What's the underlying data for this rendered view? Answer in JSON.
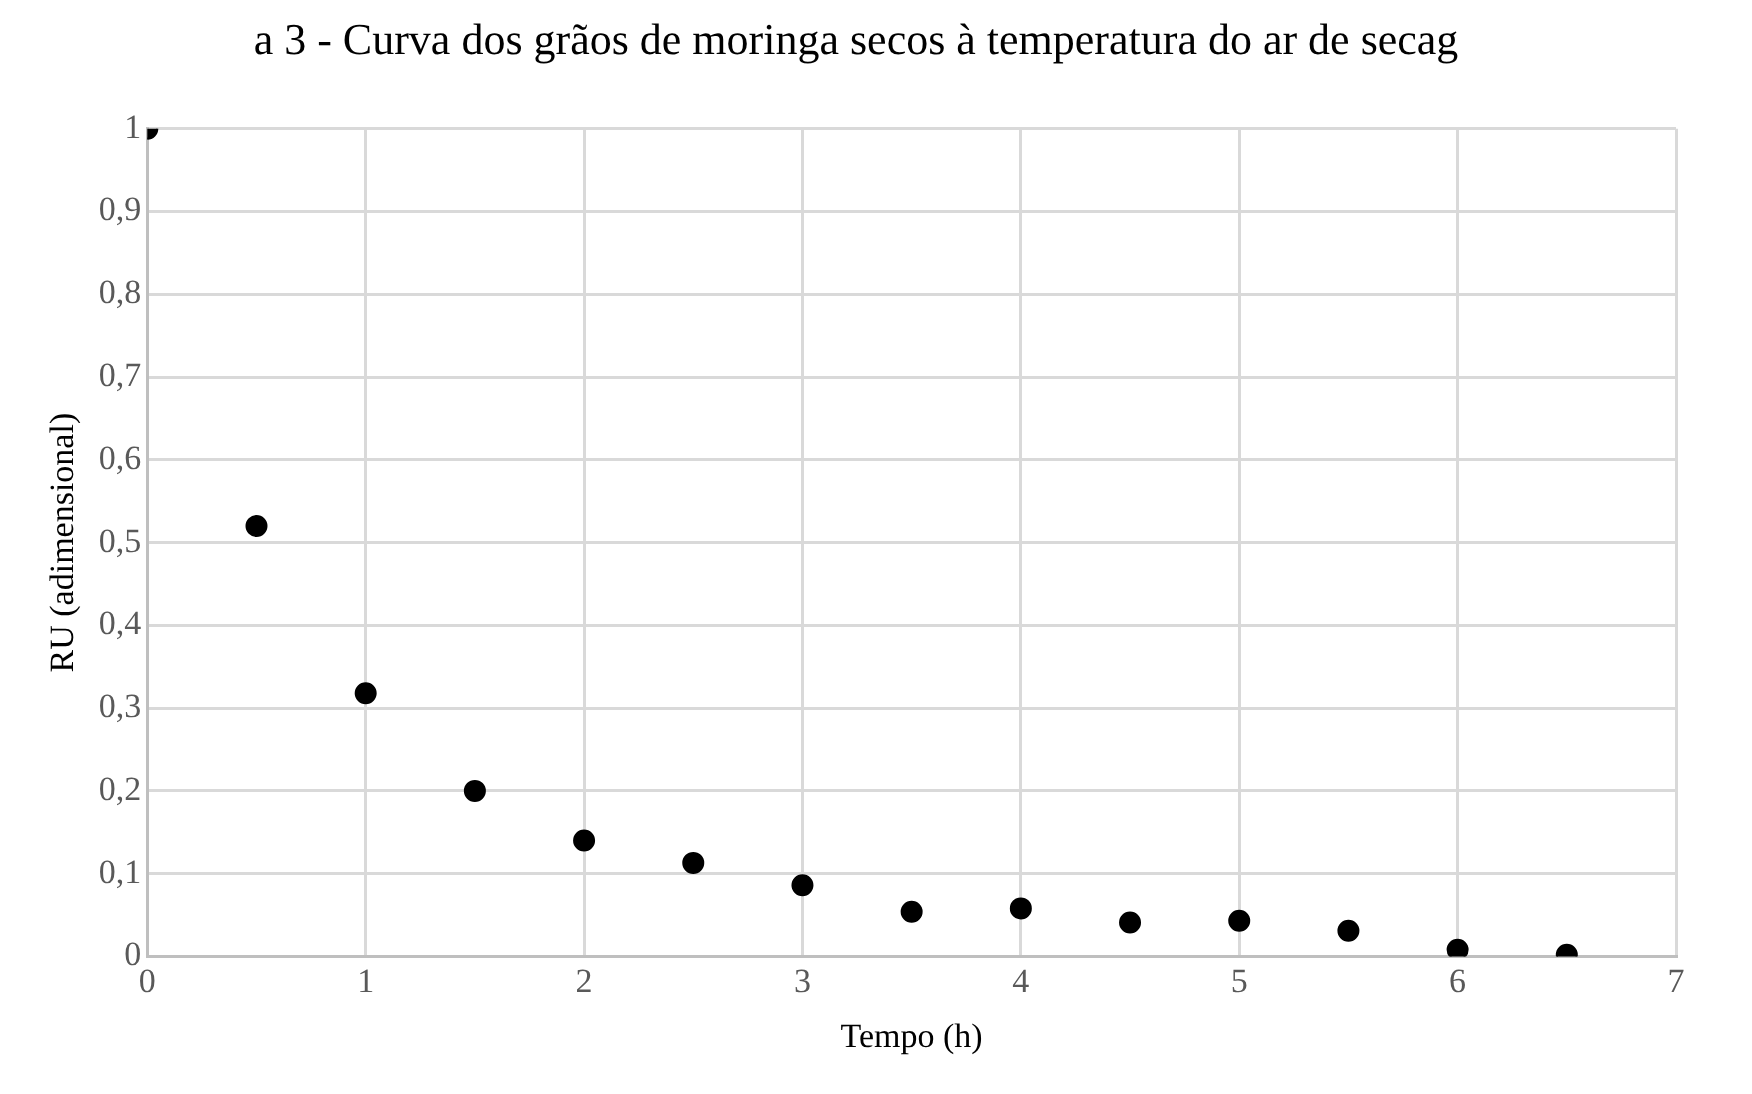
{
  "chart_data": {
    "type": "scatter",
    "title": "a 3 - Curva dos grãos de moringa secos à temperatura do ar de secag",
    "xlabel": "Tempo (h)",
    "ylabel": "RU (adimensional)",
    "x": [
      0,
      0.5,
      1,
      1.5,
      2,
      2.5,
      3,
      3.5,
      4,
      4.5,
      5,
      5.5,
      6,
      6.5
    ],
    "series": [
      {
        "color": "#000000",
        "values": [
          1,
          0.52,
          0.318,
          0.2,
          0.14,
          0.113,
          0.086,
          0.054,
          0.058,
          0.041,
          0.043,
          0.031,
          0.008,
          0.002
        ]
      }
    ],
    "xlim": [
      0,
      7
    ],
    "xticks": [
      0,
      1,
      2,
      3,
      4,
      5,
      6,
      7
    ],
    "ylim": [
      0,
      1
    ],
    "yticks": [
      0,
      {
        "value": 0.1,
        "label": "0,1"
      },
      {
        "value": 0.2,
        "label": "0,2"
      },
      {
        "value": 0.3,
        "label": "0,3"
      },
      {
        "value": 0.4,
        "label": "0,4"
      },
      {
        "value": 0.5,
        "label": "0,5"
      },
      {
        "value": 0.6,
        "label": "0,6"
      },
      {
        "value": 0.7,
        "label": "0,7"
      },
      {
        "value": 0.8,
        "label": "0,8"
      },
      {
        "value": 0.9,
        "label": "0,9"
      },
      1
    ],
    "grid": true,
    "legend": false,
    "marker": "circle"
  }
}
